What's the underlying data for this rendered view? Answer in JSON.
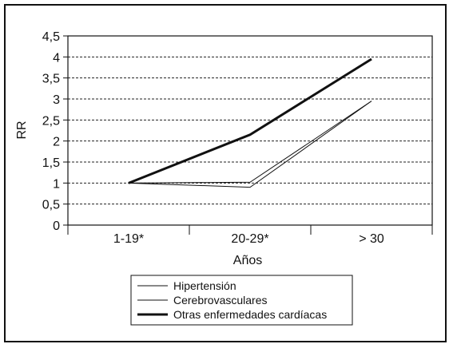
{
  "chart_data": {
    "type": "line",
    "title": "",
    "xlabel": "Años",
    "ylabel": "RR",
    "categories": [
      "1-19*",
      "20-29*",
      "> 30"
    ],
    "ylim": [
      0,
      4.5
    ],
    "ytick_step": 0.5,
    "ytick_labels": [
      "0",
      "0,5",
      "1",
      "1,5",
      "2",
      "2,5",
      "3",
      "3,5",
      "4",
      "4,5"
    ],
    "grid": true,
    "legend_position": "bottom-center",
    "series": [
      {
        "name": "Hipertensión",
        "values": [
          1.0,
          1.02,
          2.95
        ],
        "color": "#111111",
        "style": "thin"
      },
      {
        "name": "Cerebrovasculares",
        "values": [
          1.0,
          0.9,
          2.95
        ],
        "color": "#111111",
        "style": "thin"
      },
      {
        "name": "Otras enfermedades cardíacas",
        "values": [
          1.0,
          2.15,
          3.95
        ],
        "color": "#111111",
        "style": "thick"
      }
    ]
  }
}
